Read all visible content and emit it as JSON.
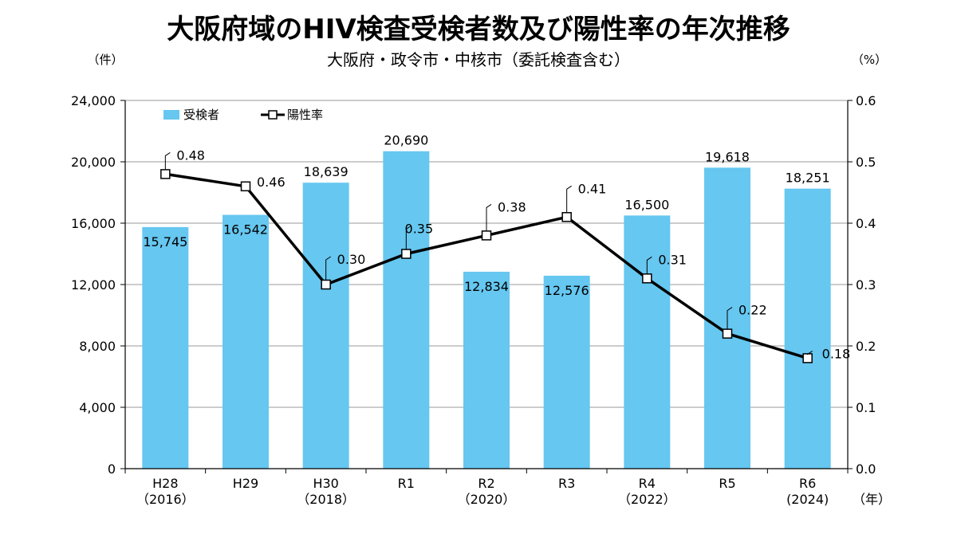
{
  "chart_data": {
    "type": "bar",
    "title": "大阪府域のHIV検査受検者数及び陽性率の年次推移",
    "subtitle": "大阪府・政令市・中核市（委託検査含む）",
    "left_unit": "（件）",
    "right_unit": "（%）",
    "x_unit": "（年）",
    "categories": [
      {
        "label": "H28",
        "year": "（2016）"
      },
      {
        "label": "H29",
        "year": ""
      },
      {
        "label": "H30",
        "year": "（2018）"
      },
      {
        "label": "R1",
        "year": ""
      },
      {
        "label": "R2",
        "year": "（2020）"
      },
      {
        "label": "R3",
        "year": ""
      },
      {
        "label": "R4",
        "year": "（2022）"
      },
      {
        "label": "R5",
        "year": ""
      },
      {
        "label": "R6",
        "year": "(2024)"
      }
    ],
    "series": [
      {
        "name": "受検者",
        "kind": "bar",
        "axis": "left",
        "color": "#66c7f0",
        "values": [
          15745,
          16542,
          18639,
          20690,
          12834,
          12576,
          16500,
          19618,
          18251
        ],
        "labels": [
          "15,745",
          "16,542",
          "18,639",
          "20,690",
          "12,834",
          "12,576",
          "16,500",
          "19,618",
          "18,251"
        ]
      },
      {
        "name": "陽性率",
        "kind": "line",
        "axis": "right",
        "color": "#000000",
        "marker": "square",
        "values": [
          0.48,
          0.46,
          0.3,
          0.35,
          0.38,
          0.41,
          0.31,
          0.22,
          0.18
        ],
        "labels": [
          "0.48",
          "0.46",
          "0.30",
          "0.35",
          "0.38",
          "0.41",
          "0.31",
          "0.22",
          "0.18"
        ]
      }
    ],
    "ylim_left": [
      0,
      24000
    ],
    "yticks_left": [
      "0",
      "4,000",
      "8,000",
      "12,000",
      "16,000",
      "20,000",
      "24,000"
    ],
    "ylim_right": [
      0,
      0.6
    ],
    "yticks_right": [
      "0.0",
      "0.1",
      "0.2",
      "0.3",
      "0.4",
      "0.5",
      "0.6"
    ],
    "grid": true,
    "legend_position": "top-left"
  }
}
